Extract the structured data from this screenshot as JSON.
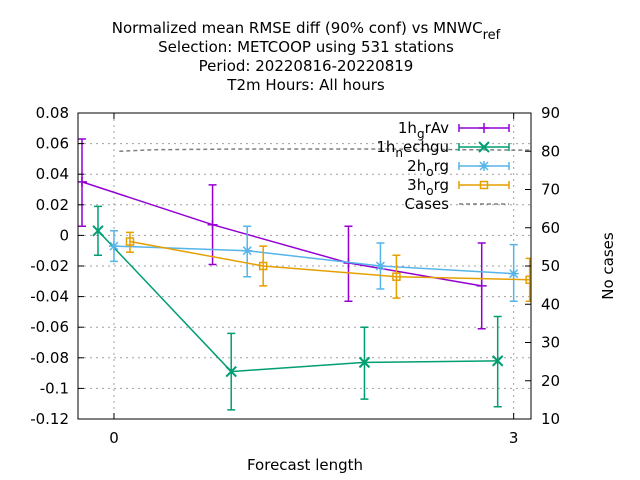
{
  "chart_data": {
    "type": "line",
    "title_lines": [
      "Normalized mean RMSE diff (90% conf) vs MNWC",
      "Selection: METCOOP using   531 stations",
      "Period: 20220816-20220819",
      "T2m   Hours:  All hours"
    ],
    "title_sub": "ref",
    "xlabel": "Forecast length",
    "y2label": "No cases",
    "xlim": [
      -0.27,
      3.13
    ],
    "ylim": [
      -0.12,
      0.08
    ],
    "y2lim": [
      10,
      90
    ],
    "x_ticks": [
      "0",
      "3"
    ],
    "y_ticks": [
      "0.08",
      "0.06",
      "0.04",
      "0.02",
      "0",
      "-0.02",
      "-0.04",
      "-0.06",
      "-0.08",
      "-0.1",
      "-0.12"
    ],
    "y_tick_values": [
      0.08,
      0.06,
      0.04,
      0.02,
      0,
      -0.02,
      -0.04,
      -0.06,
      -0.08,
      -0.1,
      -0.12
    ],
    "y2_ticks": [
      "90",
      "80",
      "70",
      "60",
      "50",
      "40",
      "30",
      "20",
      "10"
    ],
    "y2_tick_values": [
      90,
      80,
      70,
      60,
      50,
      40,
      30,
      20,
      10
    ],
    "legend_position": "top-right",
    "grid": true,
    "series": [
      {
        "name": "1hgrAv",
        "legend_base": "1h",
        "legend_sub": "g",
        "legend_tail": "rAv",
        "color": "#9400d3",
        "marker": "plus",
        "points": [
          {
            "x": -0.24,
            "y": 0.035,
            "lo": 0.006,
            "hi": 0.063
          },
          {
            "x": 0.74,
            "y": 0.007,
            "lo": -0.019,
            "hi": 0.033
          },
          {
            "x": 1.76,
            "y": -0.018,
            "lo": -0.043,
            "hi": 0.006
          },
          {
            "x": 2.76,
            "y": -0.033,
            "lo": -0.061,
            "hi": -0.005
          }
        ]
      },
      {
        "name": "1hnechgu",
        "legend_base": "1h",
        "legend_sub": "n",
        "legend_tail": "echgu",
        "color": "#009e73",
        "marker": "cross",
        "points": [
          {
            "x": -0.12,
            "y": 0.003,
            "lo": -0.013,
            "hi": 0.019
          },
          {
            "x": 0.88,
            "y": -0.089,
            "lo": -0.114,
            "hi": -0.064
          },
          {
            "x": 1.88,
            "y": -0.083,
            "lo": -0.107,
            "hi": -0.06
          },
          {
            "x": 2.88,
            "y": -0.082,
            "lo": -0.112,
            "hi": -0.053
          }
        ]
      },
      {
        "name": "2horg",
        "legend_base": "2h",
        "legend_sub": "o",
        "legend_tail": "rg",
        "color": "#56b4e9",
        "marker": "star",
        "points": [
          {
            "x": 0.0,
            "y": -0.007,
            "lo": -0.017,
            "hi": 0.003
          },
          {
            "x": 1.0,
            "y": -0.01,
            "lo": -0.027,
            "hi": 0.006
          },
          {
            "x": 2.0,
            "y": -0.02,
            "lo": -0.035,
            "hi": -0.005
          },
          {
            "x": 3.0,
            "y": -0.025,
            "lo": -0.043,
            "hi": -0.006
          }
        ]
      },
      {
        "name": "3horg",
        "legend_base": "3h",
        "legend_sub": "o",
        "legend_tail": "rg",
        "color": "#e69f00",
        "marker": "square",
        "points": [
          {
            "x": 0.12,
            "y": -0.004,
            "lo": -0.011,
            "hi": 0.002
          },
          {
            "x": 1.12,
            "y": -0.02,
            "lo": -0.033,
            "hi": -0.007
          },
          {
            "x": 2.12,
            "y": -0.027,
            "lo": -0.041,
            "hi": -0.013
          },
          {
            "x": 3.12,
            "y": -0.029,
            "lo": -0.043,
            "hi": -0.015
          }
        ]
      }
    ],
    "cases": {
      "name": "Cases",
      "color": "#808080",
      "x": [
        0.04,
        0.3,
        1.0,
        2.0,
        3.0,
        3.13
      ],
      "y": [
        80,
        80.4,
        80.6,
        80.6,
        80.3,
        80.3
      ]
    }
  }
}
